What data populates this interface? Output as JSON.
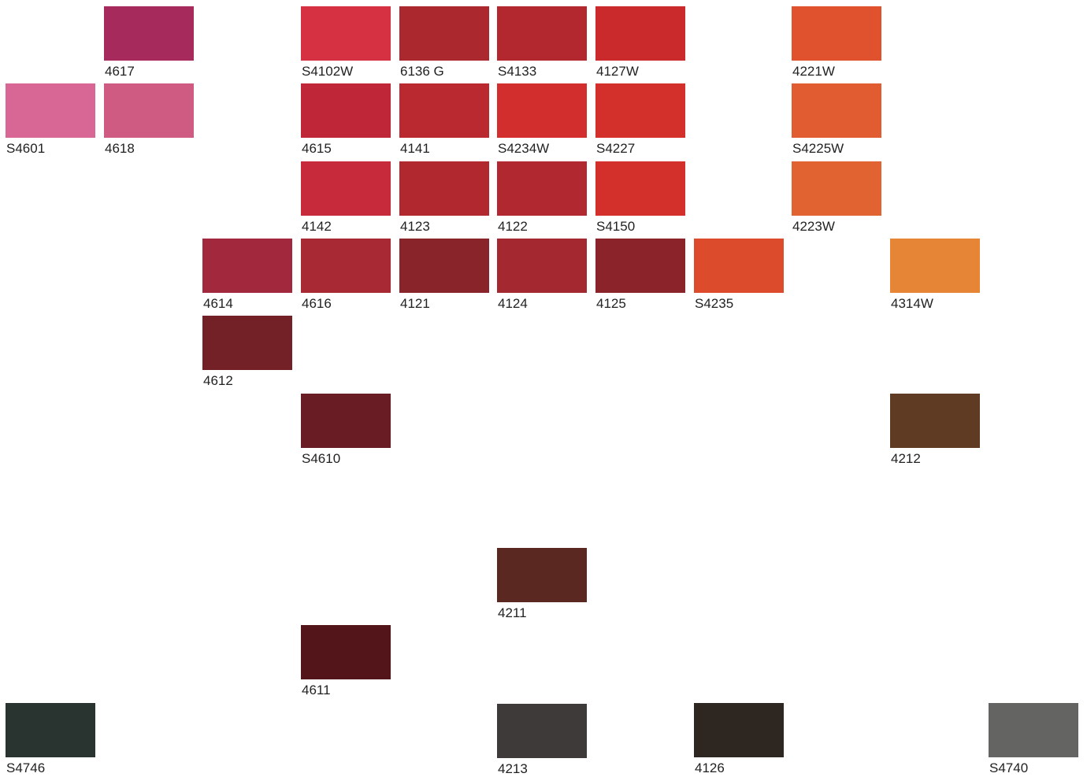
{
  "palette": {
    "swatches": [
      {
        "code": "4617",
        "color": "#A62A5B"
      },
      {
        "code": "S4102W",
        "color": "#D63043"
      },
      {
        "code": "6136 G",
        "color": "#AB282E"
      },
      {
        "code": "S4133",
        "color": "#B3282F"
      },
      {
        "code": "4127W",
        "color": "#CA2A2B"
      },
      {
        "code": "4221W",
        "color": "#E0512E"
      },
      {
        "code": "S4601",
        "color": "#D86795"
      },
      {
        "code": "4618",
        "color": "#CF5B82"
      },
      {
        "code": "4615",
        "color": "#BF2739"
      },
      {
        "code": "4141",
        "color": "#B9292F"
      },
      {
        "code": "S4234W",
        "color": "#D22E2D"
      },
      {
        "code": "S4227",
        "color": "#D32F2B"
      },
      {
        "code": "S4225W",
        "color": "#E15C30"
      },
      {
        "code": "4142",
        "color": "#C72A3A"
      },
      {
        "code": "4123",
        "color": "#B1282E"
      },
      {
        "code": "4122",
        "color": "#B22830"
      },
      {
        "code": "S4150",
        "color": "#D3302C"
      },
      {
        "code": "4223W",
        "color": "#E26332"
      },
      {
        "code": "4614",
        "color": "#A2293D"
      },
      {
        "code": "4616",
        "color": "#A82933"
      },
      {
        "code": "4121",
        "color": "#8A242B"
      },
      {
        "code": "4124",
        "color": "#A4282F"
      },
      {
        "code": "4125",
        "color": "#8A242A"
      },
      {
        "code": "S4235",
        "color": "#DC4B2C"
      },
      {
        "code": "4314W",
        "color": "#E78537"
      },
      {
        "code": "4612",
        "color": "#742027"
      },
      {
        "code": "S4610",
        "color": "#6A1C24"
      },
      {
        "code": "4212",
        "color": "#603B23"
      },
      {
        "code": "4211",
        "color": "#5B2721"
      },
      {
        "code": "4611",
        "color": "#54151A"
      },
      {
        "code": "S4746",
        "color": "#293330"
      },
      {
        "code": "4213",
        "color": "#3E3A3A"
      },
      {
        "code": "4126",
        "color": "#2E2621"
      },
      {
        "code": "S4740",
        "color": "#646563"
      }
    ]
  }
}
